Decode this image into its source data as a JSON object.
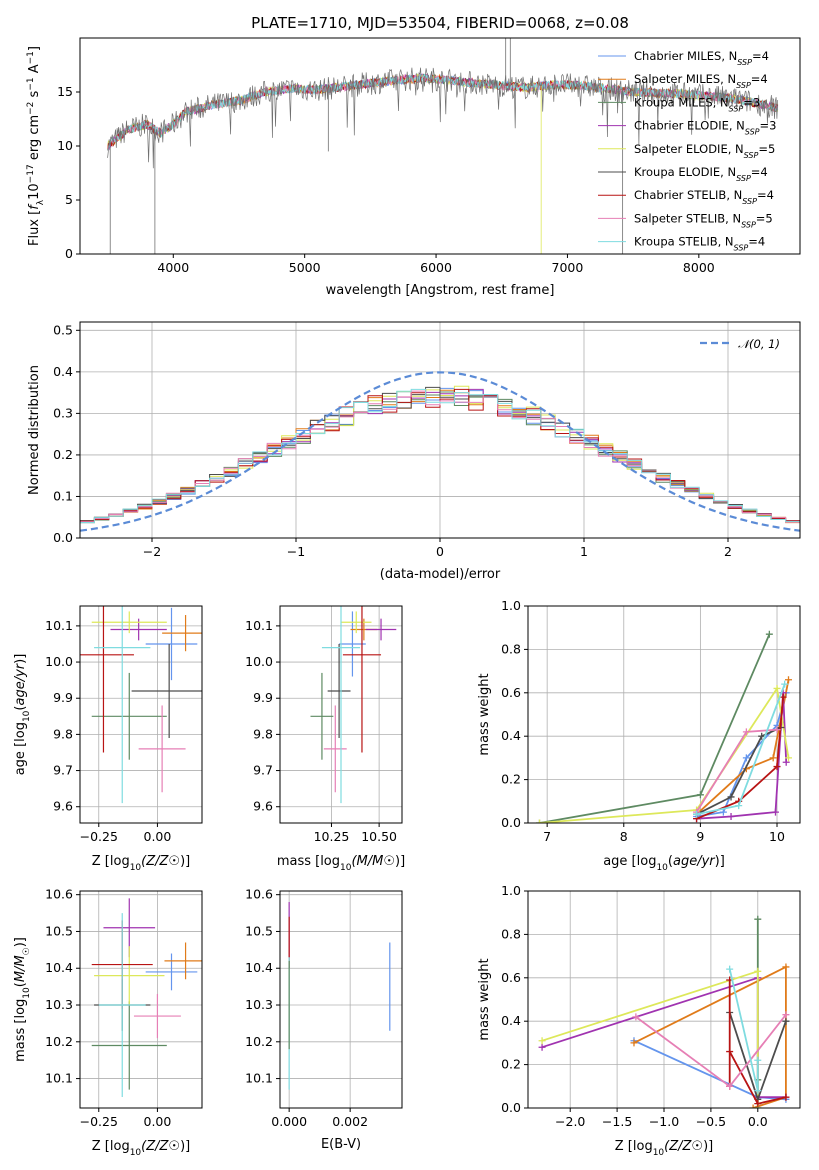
{
  "figure_title": "PLATE=1710, MJD=53504, FIBERID=0068, z=0.08",
  "palette": [
    "#6495ed",
    "#e07b1a",
    "#5e8a62",
    "#a033b0",
    "#dde85a",
    "#4d4d4d",
    "#b81414",
    "#e67fb5",
    "#7fdce0"
  ],
  "chart_data": [
    {
      "id": "spectrum",
      "type": "line",
      "title": "PLATE=1710, MJD=53504, FIBERID=0068, z=0.08",
      "xlabel": "wavelength [Angstrom, rest frame]",
      "ylabel": "Flux [f_λ10^-17 erg cm^-2 s^-1 A^-1]",
      "xlim": [
        3290,
        8770
      ],
      "ylim": [
        0,
        20
      ],
      "xticks": [
        "4000",
        "5000",
        "6000",
        "7000",
        "8000"
      ],
      "yticks": [
        "0",
        "5",
        "10",
        "15"
      ],
      "grid": false,
      "legend_position": "top-right",
      "series": [
        {
          "name": "Chabrier MILES, N_SSP=4",
          "legend": "Chabrier MILES, N",
          "sub": "SSP",
          "suffix": "=4"
        },
        {
          "name": "Salpeter MILES, N_SSP=4",
          "legend": "Salpeter MILES, N",
          "sub": "SSP",
          "suffix": "=4"
        },
        {
          "name": "Kroupa MILES, N_SSP=3",
          "legend": "Kroupa MILES, N",
          "sub": "SSP",
          "suffix": "=3"
        },
        {
          "name": "Chabrier ELODIE, N_SSP=3",
          "legend": "Chabrier ELODIE, N",
          "sub": "SSP",
          "suffix": "=3"
        },
        {
          "name": "Salpeter ELODIE, N_SSP=5",
          "legend": "Salpeter ELODIE, N",
          "sub": "SSP",
          "suffix": "=5"
        },
        {
          "name": "Kroupa ELODIE, N_SSP=4",
          "legend": "Kroupa ELODIE, N",
          "sub": "SSP",
          "suffix": "=4"
        },
        {
          "name": "Chabrier STELIB, N_SSP=4",
          "legend": "Chabrier STELIB, N",
          "sub": "SSP",
          "suffix": "=4"
        },
        {
          "name": "Salpeter STELIB, N_SSP=5",
          "legend": "Salpeter STELIB, N",
          "sub": "SSP",
          "suffix": "=5"
        },
        {
          "name": "Kroupa STELIB, N_SSP=4",
          "legend": "Kroupa STELIB, N",
          "sub": "SSP",
          "suffix": "=4"
        }
      ],
      "continuum": [
        [
          3500,
          10
        ],
        [
          3650,
          11.5
        ],
        [
          3800,
          12
        ],
        [
          3900,
          11.2
        ],
        [
          4000,
          12
        ],
        [
          4100,
          13.2
        ],
        [
          4300,
          13.8
        ],
        [
          4500,
          14.2
        ],
        [
          4700,
          15
        ],
        [
          4900,
          15.3
        ],
        [
          5100,
          15.2
        ],
        [
          5300,
          15.5
        ],
        [
          5500,
          15.8
        ],
        [
          5700,
          16.1
        ],
        [
          5900,
          16.3
        ],
        [
          6100,
          16.1
        ],
        [
          6300,
          15.8
        ],
        [
          6500,
          15.6
        ],
        [
          6700,
          15.4
        ],
        [
          6900,
          15.7
        ],
        [
          7100,
          15.6
        ],
        [
          7300,
          15.3
        ],
        [
          7500,
          15
        ],
        [
          7700,
          14.9
        ],
        [
          7900,
          14.8
        ],
        [
          8100,
          14.6
        ],
        [
          8300,
          14.3
        ],
        [
          8500,
          13.8
        ],
        [
          8600,
          13.5
        ]
      ]
    },
    {
      "id": "residuals",
      "type": "histogram",
      "xlabel": "(data-model)/error",
      "ylabel": "Normed distribution",
      "xlim": [
        -2.5,
        2.5
      ],
      "ylim": [
        0,
        0.52
      ],
      "xticks": [
        "−2",
        "−1",
        "0",
        "1",
        "2"
      ],
      "yticks": [
        "0.0",
        "0.1",
        "0.2",
        "0.3",
        "0.4",
        "0.5"
      ],
      "grid": true,
      "legend_position": "top-right",
      "reference_curve": "𝒩(0, 1)",
      "bin_width": 0.1
    },
    {
      "id": "age-vs-Z",
      "type": "scatter",
      "xlabel": "Z [log10(Z/Z☉)]",
      "ylabel": "age [log10(age/yr)]",
      "xlim": [
        -0.33,
        0.19
      ],
      "ylim": [
        9.555,
        10.155
      ],
      "xticks": [
        "−0.25",
        "0.00"
      ],
      "yticks": [
        "9.6",
        "9.7",
        "9.8",
        "9.9",
        "10.0",
        "10.1"
      ],
      "grid": true,
      "points": [
        {
          "x": 0.06,
          "y": 10.05,
          "xerr": 0.11,
          "yerr": 0.1,
          "c": 0
        },
        {
          "x": 0.12,
          "y": 10.08,
          "xerr": 0.1,
          "yerr": 0.05,
          "c": 1
        },
        {
          "x": -0.12,
          "y": 9.85,
          "xerr": 0.16,
          "yerr": 0.12,
          "c": 2
        },
        {
          "x": -0.08,
          "y": 10.09,
          "xerr": 0.12,
          "yerr": 0.03,
          "c": 3
        },
        {
          "x": -0.12,
          "y": 10.11,
          "xerr": 0.16,
          "yerr": 0.03,
          "c": 4
        },
        {
          "x": 0.05,
          "y": 9.92,
          "xerr": 0.16,
          "yerr": 0.13,
          "c": 5
        },
        {
          "x": -0.23,
          "y": 10.02,
          "xerr": 0.13,
          "yerr": 0.27,
          "c": 6
        },
        {
          "x": 0.02,
          "y": 9.76,
          "xerr": 0.1,
          "yerr": 0.12,
          "c": 7
        },
        {
          "x": -0.15,
          "y": 10.04,
          "xerr": 0.12,
          "yerr": 0.43,
          "c": 8
        }
      ]
    },
    {
      "id": "age-vs-mass",
      "type": "scatter",
      "xlabel": "mass [log10(M/M☉)]",
      "ylabel": "",
      "xlim": [
        9.98,
        10.62
      ],
      "ylim": [
        9.555,
        10.155
      ],
      "xticks": [
        "10.25",
        "10.50"
      ],
      "yticks": [
        "9.6",
        "9.7",
        "9.8",
        "9.9",
        "10.0",
        "10.1"
      ],
      "grid": true,
      "points": [
        {
          "x": 10.36,
          "y": 10.05,
          "xerr": 0.07,
          "yerr": 0.09,
          "c": 0
        },
        {
          "x": 10.42,
          "y": 10.09,
          "xerr": 0.07,
          "yerr": 0.03,
          "c": 1
        },
        {
          "x": 10.2,
          "y": 9.85,
          "xerr": 0.06,
          "yerr": 0.12,
          "c": 2
        },
        {
          "x": 10.51,
          "y": 10.09,
          "xerr": 0.08,
          "yerr": 0.03,
          "c": 3
        },
        {
          "x": 10.38,
          "y": 10.11,
          "xerr": 0.08,
          "yerr": 0.03,
          "c": 4
        },
        {
          "x": 10.29,
          "y": 9.92,
          "xerr": 0.06,
          "yerr": 0.13,
          "c": 5
        },
        {
          "x": 10.41,
          "y": 10.02,
          "xerr": 0.1,
          "yerr": 0.27,
          "c": 6
        },
        {
          "x": 10.27,
          "y": 9.76,
          "xerr": 0.06,
          "yerr": 0.12,
          "c": 7
        },
        {
          "x": 10.3,
          "y": 10.04,
          "xerr": 0.1,
          "yerr": 0.43,
          "c": 8
        }
      ]
    },
    {
      "id": "weight-vs-age",
      "type": "line",
      "xlabel": "age [log10(age/yr)]",
      "ylabel": "mass weight",
      "xlim": [
        6.75,
        10.3
      ],
      "ylim": [
        0,
        1
      ],
      "xticks": [
        "7",
        "8",
        "9",
        "10"
      ],
      "yticks": [
        "0.0",
        "0.2",
        "0.4",
        "0.6",
        "0.8",
        "1.0"
      ],
      "grid": true,
      "series": [
        {
          "c": 0,
          "points": [
            [
              8.95,
              0.03
            ],
            [
              9.3,
              0.05
            ],
            [
              9.6,
              0.3
            ],
            [
              10.0,
              0.45
            ],
            [
              10.12,
              0.6
            ]
          ]
        },
        {
          "c": 1,
          "points": [
            [
              8.95,
              0.04
            ],
            [
              9.6,
              0.25
            ],
            [
              9.95,
              0.3
            ],
            [
              10.15,
              0.66
            ]
          ]
        },
        {
          "c": 2,
          "points": [
            [
              6.9,
              0.0
            ],
            [
              9.0,
              0.13
            ],
            [
              9.9,
              0.87
            ]
          ]
        },
        {
          "c": 3,
          "points": [
            [
              8.95,
              0.02
            ],
            [
              9.4,
              0.03
            ],
            [
              9.98,
              0.05
            ],
            [
              10.08,
              0.6
            ],
            [
              10.12,
              0.28
            ]
          ]
        },
        {
          "c": 4,
          "points": [
            [
              6.9,
              0.0
            ],
            [
              8.95,
              0.06
            ],
            [
              10.0,
              0.62
            ],
            [
              10.15,
              0.3
            ]
          ]
        },
        {
          "c": 5,
          "points": [
            [
              8.95,
              0.04
            ],
            [
              9.4,
              0.12
            ],
            [
              9.8,
              0.4
            ],
            [
              10.05,
              0.44
            ]
          ]
        },
        {
          "c": 6,
          "points": [
            [
              8.95,
              0.02
            ],
            [
              9.5,
              0.1
            ],
            [
              10.0,
              0.26
            ],
            [
              10.08,
              0.58
            ]
          ]
        },
        {
          "c": 7,
          "points": [
            [
              8.95,
              0.05
            ],
            [
              9.6,
              0.42
            ],
            [
              10.0,
              0.43
            ]
          ]
        },
        {
          "c": 8,
          "points": [
            [
              8.95,
              0.04
            ],
            [
              9.5,
              0.08
            ],
            [
              10.1,
              0.64
            ]
          ]
        }
      ]
    },
    {
      "id": "mass-vs-Z",
      "type": "scatter",
      "xlabel": "Z [log10(Z/Z☉)]",
      "ylabel": "mass [log10(M/M☉)]",
      "xlim": [
        -0.33,
        0.19
      ],
      "ylim": [
        10.02,
        10.61
      ],
      "xticks": [
        "−0.25",
        "0.00"
      ],
      "yticks": [
        "10.1",
        "10.2",
        "10.3",
        "10.4",
        "10.5",
        "10.6"
      ],
      "grid": true,
      "points": [
        {
          "x": 0.06,
          "y": 10.39,
          "xerr": 0.11,
          "yerr": 0.05,
          "c": 0
        },
        {
          "x": 0.12,
          "y": 10.42,
          "xerr": 0.09,
          "yerr": 0.05,
          "c": 1
        },
        {
          "x": -0.12,
          "y": 10.19,
          "xerr": 0.16,
          "yerr": 0.12,
          "c": 2
        },
        {
          "x": -0.12,
          "y": 10.51,
          "xerr": 0.11,
          "yerr": 0.08,
          "c": 3
        },
        {
          "x": -0.12,
          "y": 10.38,
          "xerr": 0.15,
          "yerr": 0.08,
          "c": 4
        },
        {
          "x": -0.15,
          "y": 10.3,
          "xerr": 0.12,
          "yerr": 0.07,
          "c": 5
        },
        {
          "x": -0.15,
          "y": 10.41,
          "xerr": 0.13,
          "yerr": 0.12,
          "c": 6
        },
        {
          "x": 0.0,
          "y": 10.27,
          "xerr": 0.1,
          "yerr": 0.06,
          "c": 7
        },
        {
          "x": -0.15,
          "y": 10.3,
          "xerr": 0.1,
          "yerr": 0.25,
          "c": 8
        }
      ]
    },
    {
      "id": "mass-vs-ebv",
      "type": "scatter",
      "xlabel": "E(B-V)",
      "ylabel": "",
      "xlim": [
        -0.0003,
        0.0037
      ],
      "ylim": [
        10.02,
        10.61
      ],
      "xticks": [
        "0.000",
        "0.002"
      ],
      "yticks": [
        "10.1",
        "10.2",
        "10.3",
        "10.4",
        "10.5",
        "10.6"
      ],
      "grid": true,
      "points": [
        {
          "x": 0.0033,
          "y": 10.35,
          "xerr": 0,
          "yerr": 0.12,
          "c": 0
        },
        {
          "x": 0.0,
          "y": 10.5,
          "xerr": 0,
          "yerr": 0.08,
          "c": 3
        },
        {
          "x": 0.0,
          "y": 10.47,
          "xerr": 0,
          "yerr": 0.07,
          "c": 6
        },
        {
          "x": 0.0,
          "y": 10.25,
          "xerr": 0,
          "yerr": 0.18,
          "c": 8
        },
        {
          "x": 0.0,
          "y": 10.3,
          "xerr": 0,
          "yerr": 0.12,
          "c": 2
        }
      ]
    },
    {
      "id": "weight-vs-Z",
      "type": "line",
      "xlabel": "Z [log10(Z/Z☉)]",
      "ylabel": "mass weight",
      "xlim": [
        -2.45,
        0.45
      ],
      "ylim": [
        0,
        1
      ],
      "xticks": [
        "−2.0",
        "−1.5",
        "−1.0",
        "−0.5",
        "0.0"
      ],
      "yticks": [
        "0.0",
        "0.2",
        "0.4",
        "0.6",
        "0.8",
        "1.0"
      ],
      "grid": true,
      "series": [
        {
          "c": 0,
          "points": [
            [
              -1.32,
              0.31
            ],
            [
              0.0,
              0.05
            ],
            [
              0.3,
              0.04
            ]
          ]
        },
        {
          "c": 1,
          "points": [
            [
              -1.32,
              0.3
            ],
            [
              0.3,
              0.65
            ],
            [
              0.3,
              0.05
            ],
            [
              -0.05,
              0.0
            ]
          ]
        },
        {
          "c": 2,
          "points": [
            [
              0.0,
              0.87
            ],
            [
              0.0,
              0.0
            ],
            [
              0.0,
              0.13
            ]
          ]
        },
        {
          "c": 3,
          "points": [
            [
              -2.3,
              0.28
            ],
            [
              0.0,
              0.6
            ],
            [
              0.0,
              0.05
            ],
            [
              0.3,
              0.05
            ]
          ]
        },
        {
          "c": 4,
          "points": [
            [
              -2.3,
              0.31
            ],
            [
              0.0,
              0.63
            ],
            [
              0.0,
              0.0
            ]
          ]
        },
        {
          "c": 5,
          "points": [
            [
              -0.3,
              0.44
            ],
            [
              0.0,
              0.04
            ],
            [
              0.3,
              0.4
            ]
          ]
        },
        {
          "c": 6,
          "points": [
            [
              -0.3,
              0.59
            ],
            [
              -0.3,
              0.1
            ],
            [
              -0.3,
              0.26
            ],
            [
              0.0,
              0.02
            ],
            [
              0.3,
              0.05
            ]
          ]
        },
        {
          "c": 7,
          "points": [
            [
              -1.3,
              0.42
            ],
            [
              -0.3,
              0.1
            ],
            [
              0.3,
              0.43
            ]
          ]
        },
        {
          "c": 8,
          "points": [
            [
              -0.3,
              0.64
            ],
            [
              0.0,
              0.08
            ],
            [
              0.0,
              0.22
            ]
          ]
        }
      ]
    }
  ]
}
